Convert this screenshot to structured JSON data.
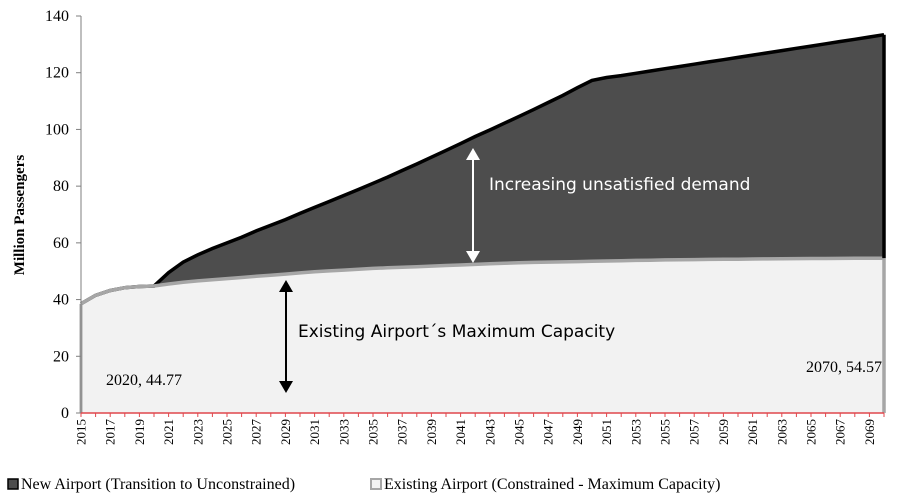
{
  "chart_data": {
    "type": "area",
    "ylabel": "Million  Passengers",
    "xlabel": "",
    "ylim": [
      0,
      140
    ],
    "xlim": [
      2015,
      2070
    ],
    "y_ticks": [
      0,
      20,
      40,
      60,
      80,
      100,
      120,
      140
    ],
    "x_ticks": [
      2015,
      2017,
      2019,
      2021,
      2023,
      2025,
      2027,
      2029,
      2031,
      2033,
      2035,
      2037,
      2039,
      2041,
      2043,
      2045,
      2047,
      2049,
      2051,
      2053,
      2055,
      2057,
      2059,
      2061,
      2063,
      2065,
      2067,
      2069
    ],
    "grid": false,
    "legend_position": "bottom",
    "colors": {
      "new_airport_fill": "#4d4d4d",
      "new_airport_line": "#000000",
      "existing_fill": "#f2f2f2",
      "existing_line": "#a6a6a6",
      "x_axis": "#e0474c"
    },
    "series": [
      {
        "name": "New Airport (Transition to Unconstrained)",
        "x": [
          2015,
          2016,
          2017,
          2018,
          2019,
          2020,
          2021,
          2022,
          2023,
          2024,
          2025,
          2026,
          2027,
          2028,
          2029,
          2030,
          2031,
          2032,
          2033,
          2034,
          2035,
          2036,
          2037,
          2038,
          2039,
          2040,
          2041,
          2042,
          2043,
          2044,
          2045,
          2046,
          2047,
          2048,
          2049,
          2050,
          2051,
          2052,
          2053,
          2054,
          2055,
          2056,
          2057,
          2058,
          2059,
          2060,
          2061,
          2062,
          2063,
          2064,
          2065,
          2066,
          2067,
          2068,
          2069,
          2070
        ],
        "values": [
          38.5,
          41.5,
          43.2,
          44.2,
          44.6,
          44.77,
          49.5,
          53.2,
          55.8,
          58.0,
          60.0,
          62.0,
          64.2,
          66.2,
          68.2,
          70.4,
          72.5,
          74.6,
          76.7,
          78.8,
          81.0,
          83.2,
          85.5,
          87.8,
          90.2,
          92.6,
          95.0,
          97.5,
          99.8,
          102.2,
          104.6,
          107.0,
          109.5,
          112.0,
          114.7,
          117.3,
          118.3,
          119.0,
          119.8,
          120.6,
          121.4,
          122.2,
          123.0,
          123.8,
          124.6,
          125.4,
          126.2,
          127.0,
          127.8,
          128.6,
          129.4,
          130.2,
          131.0,
          131.8,
          132.6,
          133.4
        ]
      },
      {
        "name": "Existing Airport (Constrained -  Maximum Capacity)",
        "x": [
          2015,
          2016,
          2017,
          2018,
          2019,
          2020,
          2021,
          2022,
          2023,
          2024,
          2025,
          2026,
          2027,
          2028,
          2029,
          2030,
          2031,
          2032,
          2033,
          2034,
          2035,
          2036,
          2037,
          2038,
          2039,
          2040,
          2041,
          2042,
          2043,
          2044,
          2045,
          2046,
          2047,
          2048,
          2049,
          2050,
          2051,
          2052,
          2053,
          2054,
          2055,
          2056,
          2057,
          2058,
          2059,
          2060,
          2061,
          2062,
          2063,
          2064,
          2065,
          2066,
          2067,
          2068,
          2069,
          2070
        ],
        "values": [
          38.5,
          41.5,
          43.2,
          44.2,
          44.6,
          44.77,
          45.5,
          46.1,
          46.6,
          47.0,
          47.4,
          47.8,
          48.2,
          48.6,
          49.0,
          49.4,
          49.8,
          50.1,
          50.4,
          50.7,
          51.0,
          51.2,
          51.4,
          51.6,
          51.8,
          52.0,
          52.2,
          52.4,
          52.6,
          52.8,
          53.0,
          53.1,
          53.2,
          53.3,
          53.4,
          53.5,
          53.6,
          53.7,
          53.8,
          53.9,
          54.0,
          54.05,
          54.1,
          54.15,
          54.2,
          54.25,
          54.3,
          54.35,
          54.4,
          54.45,
          54.48,
          54.5,
          54.52,
          54.54,
          54.56,
          54.57
        ]
      }
    ],
    "annotations": {
      "unsatisfied": "Increasing unsatisfied demand",
      "capacity": "Existing Airport´s Maximum Capacity",
      "label_2020": "2020, 44.77",
      "label_2070": "2070, 54.57"
    },
    "legend": [
      {
        "label": "New Airport (Transition to Unconstrained)"
      },
      {
        "label": "Existing Airport (Constrained -  Maximum Capacity)"
      }
    ]
  }
}
